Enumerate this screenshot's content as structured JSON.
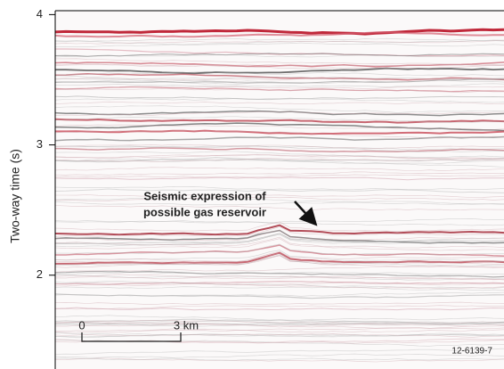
{
  "axis": {
    "label": "Two-way time (s)",
    "ylim": [
      1.28,
      4.03
    ],
    "yticks": [
      2,
      3,
      4
    ]
  },
  "annotation": {
    "lines": [
      "Seismic expression of",
      "possible gas reservoir"
    ]
  },
  "scale_bar": {
    "start_label": "0",
    "end_label": "3 km"
  },
  "figure_id": "12-6139-7"
}
